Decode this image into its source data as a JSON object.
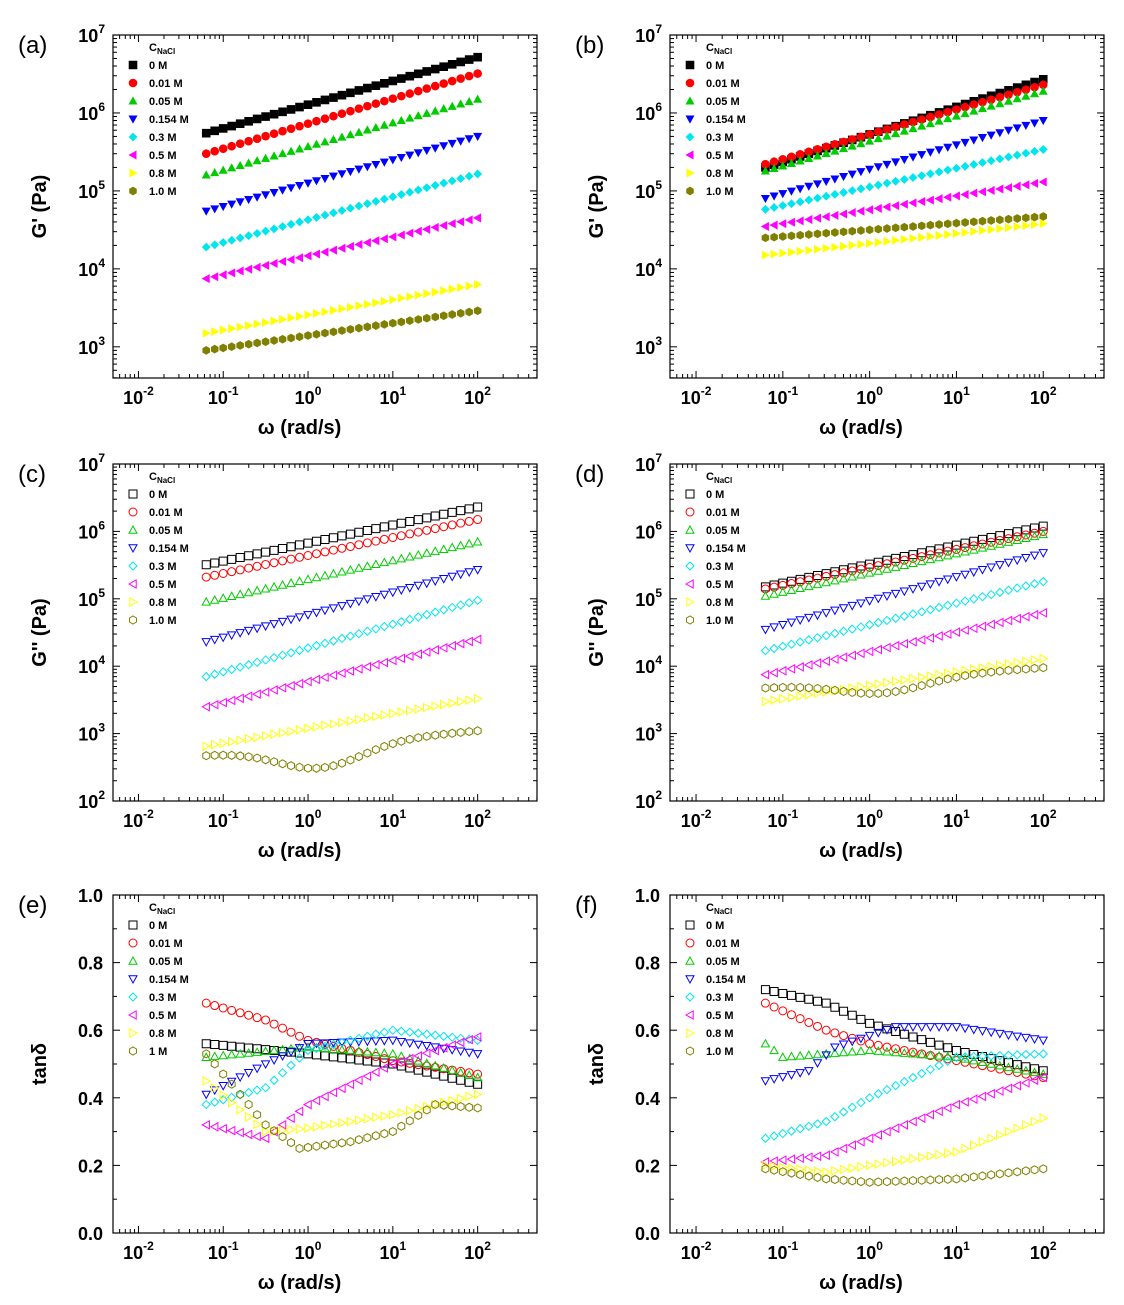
{
  "chart_data": [
    {
      "panel": "(a)",
      "type": "scatter",
      "ylog": true,
      "filled": true,
      "xlabel": "ω (rad/s)",
      "ylabel": "G' (Pa)",
      "xlim_exp": [
        -2.3,
        2.7
      ],
      "ylim_exp": [
        2.6,
        7.0
      ],
      "xticks": [
        {
          "base": "10",
          "exp": "-2",
          "v": -2
        },
        {
          "base": "10",
          "exp": "-1",
          "v": -1
        },
        {
          "base": "10",
          "exp": "0",
          "v": 0
        },
        {
          "base": "10",
          "exp": "1",
          "v": 1
        },
        {
          "base": "10",
          "exp": "2",
          "v": 2
        }
      ],
      "yticks": [
        {
          "base": "10",
          "exp": "3",
          "v": 3
        },
        {
          "base": "10",
          "exp": "4",
          "v": 4
        },
        {
          "base": "10",
          "exp": "5",
          "v": 5
        },
        {
          "base": "10",
          "exp": "6",
          "v": 6
        },
        {
          "base": "10",
          "exp": "7",
          "v": 7
        }
      ],
      "legend": {
        "title": "C",
        "title_sub": "NaCl",
        "position": "top-left"
      },
      "x_range": [
        0.063,
        100
      ],
      "npoints": 33,
      "series": [
        {
          "name": "0 M",
          "marker": "square",
          "color": "#000000",
          "y_start": 550000,
          "y_end": 5200000
        },
        {
          "name": "0.01 M",
          "marker": "circle",
          "color": "#ff0000",
          "y_start": 300000,
          "y_end": 3200000
        },
        {
          "name": "0.05 M",
          "marker": "triangle-up",
          "color": "#00cc00",
          "y_start": 160000,
          "y_end": 1500000
        },
        {
          "name": "0.154 M",
          "marker": "triangle-down",
          "color": "#0000ff",
          "y_start": 55000,
          "y_end": 500000
        },
        {
          "name": "0.3 M",
          "marker": "diamond",
          "color": "#00e5ee",
          "y_start": 19000,
          "y_end": 165000
        },
        {
          "name": "0.5 M",
          "marker": "triangle-left",
          "color": "#ff00ff",
          "y_start": 7500,
          "y_end": 45000
        },
        {
          "name": "0.8 M",
          "marker": "triangle-right",
          "color": "#ffff00",
          "y_start": 1500,
          "y_end": 6300
        },
        {
          "name": "1.0 M",
          "marker": "hexagon",
          "color": "#808000",
          "y_start": 900,
          "y_end": 2900
        }
      ]
    },
    {
      "panel": "(b)",
      "type": "scatter",
      "ylog": true,
      "filled": true,
      "xlabel": "ω (rad/s)",
      "ylabel": "G' (Pa)",
      "xlim_exp": [
        -2.3,
        2.7
      ],
      "ylim_exp": [
        2.6,
        7.0
      ],
      "xticks": [
        {
          "base": "10",
          "exp": "-2",
          "v": -2
        },
        {
          "base": "10",
          "exp": "-1",
          "v": -1
        },
        {
          "base": "10",
          "exp": "0",
          "v": 0
        },
        {
          "base": "10",
          "exp": "1",
          "v": 1
        },
        {
          "base": "10",
          "exp": "2",
          "v": 2
        }
      ],
      "yticks": [
        {
          "base": "10",
          "exp": "3",
          "v": 3
        },
        {
          "base": "10",
          "exp": "4",
          "v": 4
        },
        {
          "base": "10",
          "exp": "5",
          "v": 5
        },
        {
          "base": "10",
          "exp": "6",
          "v": 6
        },
        {
          "base": "10",
          "exp": "7",
          "v": 7
        }
      ],
      "legend": {
        "title": "C",
        "title_sub": "NaCl",
        "position": "top-left"
      },
      "x_range": [
        0.063,
        100
      ],
      "npoints": 33,
      "series": [
        {
          "name": "0 M",
          "marker": "square",
          "color": "#000000",
          "y_start": 200000,
          "y_end": 2700000
        },
        {
          "name": "0.01 M",
          "marker": "circle",
          "color": "#ff0000",
          "y_start": 220000,
          "y_end": 2300000
        },
        {
          "name": "0.05 M",
          "marker": "triangle-up",
          "color": "#00cc00",
          "y_start": 180000,
          "y_end": 1900000
        },
        {
          "name": "0.154 M",
          "marker": "triangle-down",
          "color": "#0000ff",
          "y_start": 80000,
          "y_end": 800000
        },
        {
          "name": "0.3 M",
          "marker": "diamond",
          "color": "#00e5ee",
          "y_start": 58000,
          "y_end": 340000
        },
        {
          "name": "0.5 M",
          "marker": "triangle-left",
          "color": "#ff00ff",
          "y_start": 35000,
          "y_end": 130000
        },
        {
          "name": "0.8 M",
          "marker": "triangle-right",
          "color": "#ffff00",
          "y_start": 15000,
          "y_end": 38000
        },
        {
          "name": "1.0 M",
          "marker": "hexagon",
          "color": "#808000",
          "y_start": 25000,
          "y_end": 47000
        }
      ]
    },
    {
      "panel": "(c)",
      "type": "scatter",
      "ylog": true,
      "filled": false,
      "xlabel": "ω (rad/s)",
      "ylabel": "G'' (Pa)",
      "xlim_exp": [
        -2.3,
        2.7
      ],
      "ylim_exp": [
        2.0,
        7.0
      ],
      "xticks": [
        {
          "base": "10",
          "exp": "-2",
          "v": -2
        },
        {
          "base": "10",
          "exp": "-1",
          "v": -1
        },
        {
          "base": "10",
          "exp": "0",
          "v": 0
        },
        {
          "base": "10",
          "exp": "1",
          "v": 1
        },
        {
          "base": "10",
          "exp": "2",
          "v": 2
        }
      ],
      "yticks": [
        {
          "base": "10",
          "exp": "2",
          "v": 2
        },
        {
          "base": "10",
          "exp": "3",
          "v": 3
        },
        {
          "base": "10",
          "exp": "4",
          "v": 4
        },
        {
          "base": "10",
          "exp": "5",
          "v": 5
        },
        {
          "base": "10",
          "exp": "6",
          "v": 6
        },
        {
          "base": "10",
          "exp": "7",
          "v": 7
        }
      ],
      "legend": {
        "title": "C",
        "title_sub": "NaCl",
        "position": "top-left"
      },
      "x_range": [
        0.063,
        100
      ],
      "npoints": 33,
      "series": [
        {
          "name": "0 M",
          "marker": "square",
          "color": "#000000",
          "y_start": 320000,
          "y_end": 2300000
        },
        {
          "name": "0.01 M",
          "marker": "circle",
          "color": "#ff0000",
          "y_start": 210000,
          "y_end": 1500000
        },
        {
          "name": "0.05 M",
          "marker": "triangle-up",
          "color": "#00cc00",
          "y_start": 90000,
          "y_end": 700000
        },
        {
          "name": "0.154 M",
          "marker": "triangle-down",
          "color": "#0000ff",
          "y_start": 23000,
          "y_end": 270000
        },
        {
          "name": "0.3 M",
          "marker": "diamond",
          "color": "#00e5ee",
          "y_start": 7000,
          "y_end": 95000
        },
        {
          "name": "0.5 M",
          "marker": "triangle-left",
          "color": "#ff00ff",
          "y_start": 2500,
          "y_end": 25000
        },
        {
          "name": "0.8 M",
          "marker": "triangle-right",
          "color": "#ffff00",
          "y_start": 650,
          "y_end": 3300
        },
        {
          "name": "1.0 M",
          "marker": "hexagon",
          "color": "#808000",
          "y_start": 480,
          "y_end": 1100,
          "y_dip": 330
        }
      ]
    },
    {
      "panel": "(d)",
      "type": "scatter",
      "ylog": true,
      "filled": false,
      "xlabel": "ω (rad/s)",
      "ylabel": "G'' (Pa)",
      "xlim_exp": [
        -2.3,
        2.7
      ],
      "ylim_exp": [
        2.0,
        7.0
      ],
      "xticks": [
        {
          "base": "10",
          "exp": "-2",
          "v": -2
        },
        {
          "base": "10",
          "exp": "-1",
          "v": -1
        },
        {
          "base": "10",
          "exp": "0",
          "v": 0
        },
        {
          "base": "10",
          "exp": "1",
          "v": 1
        },
        {
          "base": "10",
          "exp": "2",
          "v": 2
        }
      ],
      "yticks": [
        {
          "base": "10",
          "exp": "2",
          "v": 2
        },
        {
          "base": "10",
          "exp": "3",
          "v": 3
        },
        {
          "base": "10",
          "exp": "4",
          "v": 4
        },
        {
          "base": "10",
          "exp": "5",
          "v": 5
        },
        {
          "base": "10",
          "exp": "6",
          "v": 6
        },
        {
          "base": "10",
          "exp": "7",
          "v": 7
        }
      ],
      "legend": {
        "title": "C",
        "title_sub": "NaCl",
        "position": "top-left"
      },
      "x_range": [
        0.063,
        100
      ],
      "npoints": 33,
      "series": [
        {
          "name": "0 M",
          "marker": "square",
          "color": "#000000",
          "y_start": 150000,
          "y_end": 1200000
        },
        {
          "name": "0.01 M",
          "marker": "circle",
          "color": "#ff0000",
          "y_start": 140000,
          "y_end": 1000000
        },
        {
          "name": "0.05 M",
          "marker": "triangle-up",
          "color": "#00cc00",
          "y_start": 110000,
          "y_end": 900000
        },
        {
          "name": "0.154 M",
          "marker": "triangle-down",
          "color": "#0000ff",
          "y_start": 35000,
          "y_end": 480000
        },
        {
          "name": "0.3 M",
          "marker": "diamond",
          "color": "#00e5ee",
          "y_start": 17000,
          "y_end": 180000
        },
        {
          "name": "0.5 M",
          "marker": "triangle-left",
          "color": "#ff00ff",
          "y_start": 7500,
          "y_end": 62000
        },
        {
          "name": "0.8 M",
          "marker": "triangle-right",
          "color": "#ffff00",
          "y_start": 3000,
          "y_end": 13000
        },
        {
          "name": "1.0 M",
          "marker": "hexagon",
          "color": "#808000",
          "y_start": 4800,
          "y_end": 9500,
          "y_dip": 4200
        }
      ]
    },
    {
      "panel": "(e)",
      "type": "scatter",
      "ylog": false,
      "filled": false,
      "xlabel": "ω (rad/s)",
      "ylabel": "tanδ",
      "xlim_exp": [
        -2.3,
        2.7
      ],
      "ylim": [
        0.0,
        1.0
      ],
      "xticks": [
        {
          "base": "10",
          "exp": "-2",
          "v": -2
        },
        {
          "base": "10",
          "exp": "-1",
          "v": -1
        },
        {
          "base": "10",
          "exp": "0",
          "v": 0
        },
        {
          "base": "10",
          "exp": "1",
          "v": 1
        },
        {
          "base": "10",
          "exp": "2",
          "v": 2
        }
      ],
      "yticks": [
        {
          "label": "0.0",
          "v": 0.0
        },
        {
          "label": "0.2",
          "v": 0.2
        },
        {
          "label": "0.4",
          "v": 0.4
        },
        {
          "label": "0.6",
          "v": 0.6
        },
        {
          "label": "0.8",
          "v": 0.8
        },
        {
          "label": "1.0",
          "v": 1.0
        }
      ],
      "legend": {
        "title": "C",
        "title_sub": "NaCl",
        "position": "top-left"
      },
      "x_range": [
        0.063,
        100
      ],
      "npoints": 33,
      "series": [
        {
          "name": "0 M",
          "marker": "square",
          "color": "#000000",
          "x": [
            -1.2,
            0,
            1,
            2
          ],
          "y": [
            0.56,
            0.53,
            0.5,
            0.44
          ]
        },
        {
          "name": "0.01 M",
          "marker": "circle",
          "color": "#ff0000",
          "x": [
            -1.2,
            -0.5,
            0,
            1,
            2
          ],
          "y": [
            0.68,
            0.63,
            0.57,
            0.51,
            0.47
          ]
        },
        {
          "name": "0.05 M",
          "marker": "triangle-up",
          "color": "#00cc00",
          "x": [
            -1.2,
            0,
            1,
            2
          ],
          "y": [
            0.52,
            0.55,
            0.53,
            0.46
          ]
        },
        {
          "name": "0.154 M",
          "marker": "triangle-down",
          "color": "#0000ff",
          "x": [
            -1.2,
            -0.5,
            0,
            1,
            2
          ],
          "y": [
            0.41,
            0.5,
            0.56,
            0.57,
            0.53
          ]
        },
        {
          "name": "0.3 M",
          "marker": "diamond",
          "color": "#00e5ee",
          "x": [
            -1.2,
            -0.5,
            0,
            1,
            2
          ],
          "y": [
            0.38,
            0.43,
            0.54,
            0.6,
            0.57
          ]
        },
        {
          "name": "0.5 M",
          "marker": "triangle-left",
          "color": "#ff00ff",
          "x": [
            -1.2,
            -0.5,
            0,
            1,
            2
          ],
          "y": [
            0.32,
            0.28,
            0.38,
            0.5,
            0.58
          ]
        },
        {
          "name": "0.8 M",
          "marker": "triangle-right",
          "color": "#ffff00",
          "x": [
            -1.2,
            -0.5,
            0,
            1,
            2
          ],
          "y": [
            0.45,
            0.3,
            0.31,
            0.35,
            0.41
          ]
        },
        {
          "name": "1 M",
          "marker": "hexagon",
          "color": "#808000",
          "x": [
            -1.2,
            -0.5,
            -0.1,
            0.5,
            1,
            1.5,
            2
          ],
          "y": [
            0.53,
            0.32,
            0.25,
            0.27,
            0.3,
            0.38,
            0.37
          ]
        }
      ]
    },
    {
      "panel": "(f)",
      "type": "scatter",
      "ylog": false,
      "filled": false,
      "xlabel": "ω (rad/s)",
      "ylabel": "tanδ",
      "xlim_exp": [
        -2.3,
        2.7
      ],
      "ylim": [
        0.0,
        1.0
      ],
      "xticks": [
        {
          "base": "10",
          "exp": "-2",
          "v": -2
        },
        {
          "base": "10",
          "exp": "-1",
          "v": -1
        },
        {
          "base": "10",
          "exp": "0",
          "v": 0
        },
        {
          "base": "10",
          "exp": "1",
          "v": 1
        },
        {
          "base": "10",
          "exp": "2",
          "v": 2
        }
      ],
      "yticks": [
        {
          "label": "0.0",
          "v": 0.0
        },
        {
          "label": "0.2",
          "v": 0.2
        },
        {
          "label": "0.4",
          "v": 0.4
        },
        {
          "label": "0.6",
          "v": 0.6
        },
        {
          "label": "0.8",
          "v": 0.8
        },
        {
          "label": "1.0",
          "v": 1.0
        }
      ],
      "legend": {
        "title": "C",
        "title_sub": "NaCl",
        "position": "top-left"
      },
      "x_range": [
        0.063,
        100
      ],
      "npoints": 33,
      "series": [
        {
          "name": "0 M",
          "marker": "square",
          "color": "#000000",
          "x": [
            -1.2,
            -0.5,
            0,
            1,
            2
          ],
          "y": [
            0.72,
            0.68,
            0.62,
            0.54,
            0.48
          ]
        },
        {
          "name": "0.01 M",
          "marker": "circle",
          "color": "#ff0000",
          "x": [
            -1.2,
            -0.5,
            0,
            1,
            2
          ],
          "y": [
            0.68,
            0.6,
            0.56,
            0.51,
            0.46
          ]
        },
        {
          "name": "0.05 M",
          "marker": "triangle-up",
          "color": "#00cc00",
          "x": [
            -1.2,
            -1.0,
            0,
            1,
            2
          ],
          "y": [
            0.56,
            0.52,
            0.54,
            0.52,
            0.47
          ]
        },
        {
          "name": "0.154 M",
          "marker": "triangle-down",
          "color": "#0000ff",
          "x": [
            -1.2,
            -0.7,
            -0.4,
            0.3,
            1,
            2
          ],
          "y": [
            0.45,
            0.48,
            0.55,
            0.61,
            0.61,
            0.57
          ]
        },
        {
          "name": "0.3 M",
          "marker": "diamond",
          "color": "#00e5ee",
          "x": [
            -1.2,
            -0.5,
            0,
            1,
            2
          ],
          "y": [
            0.28,
            0.33,
            0.4,
            0.52,
            0.53
          ]
        },
        {
          "name": "0.5 M",
          "marker": "triangle-left",
          "color": "#ff00ff",
          "x": [
            -1.2,
            -0.5,
            0,
            1,
            2
          ],
          "y": [
            0.21,
            0.23,
            0.28,
            0.38,
            0.46
          ]
        },
        {
          "name": "0.8 M",
          "marker": "triangle-right",
          "color": "#ffff00",
          "x": [
            -1.2,
            -0.5,
            0,
            1,
            2
          ],
          "y": [
            0.2,
            0.18,
            0.2,
            0.24,
            0.34
          ]
        },
        {
          "name": "1.0 M",
          "marker": "hexagon",
          "color": "#808000",
          "x": [
            -1.2,
            -0.5,
            0,
            1,
            2
          ],
          "y": [
            0.19,
            0.16,
            0.15,
            0.16,
            0.19
          ]
        }
      ]
    }
  ]
}
